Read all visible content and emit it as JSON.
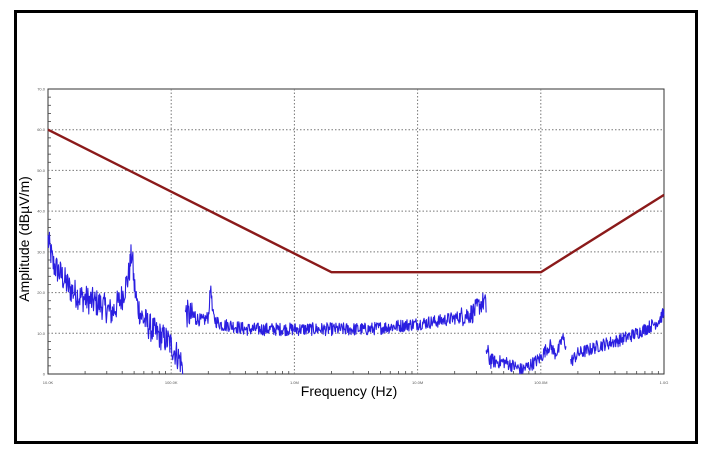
{
  "chart_data": {
    "type": "line",
    "title": "",
    "xlabel": "Frequency (Hz)",
    "ylabel": "Amplitude (dBµV/m)",
    "x_scale": "log",
    "xlim": [
      10000,
      1000000000
    ],
    "ylim": [
      0,
      70
    ],
    "grid": true,
    "grid_style": "dotted",
    "x_ticks": [
      {
        "value": 10000,
        "label": "10.0K"
      },
      {
        "value": 100000,
        "label": "100.0K"
      },
      {
        "value": 1000000,
        "label": "1.0M"
      },
      {
        "value": 10000000,
        "label": "10.0M"
      },
      {
        "value": 100000000,
        "label": "100.0M"
      },
      {
        "value": 1000000000,
        "label": "1.0G"
      }
    ],
    "y_ticks": [
      {
        "value": 0,
        "label": "0"
      },
      {
        "value": 10,
        "label": "10.0"
      },
      {
        "value": 20,
        "label": "20.0"
      },
      {
        "value": 30,
        "label": "30.0"
      },
      {
        "value": 40,
        "label": "40.0"
      },
      {
        "value": 50,
        "label": "50.0"
      },
      {
        "value": 60,
        "label": "60.0"
      },
      {
        "value": 70,
        "label": "70.0"
      }
    ],
    "series": [
      {
        "role": "limit",
        "color": "#8b1a1a",
        "x": [
          10000,
          2000000,
          30000000,
          100000000,
          1000000000
        ],
        "y": [
          60,
          25,
          25,
          25,
          44
        ]
      },
      {
        "role": "measurement",
        "color": "#2a1ee0",
        "segments": [
          {
            "x": [
              10000,
              11000,
              13000,
              15000,
              18000,
              22000,
              27000,
              33000,
              40000,
              45000,
              48000,
              50000,
              53000,
              58000,
              65000,
              75000,
              85000,
              95000,
              100000,
              110000,
              120000,
              125000
            ],
            "y": [
              33,
              27,
              24,
              21,
              19,
              18,
              17,
              15,
              19,
              24,
              30,
              22,
              17,
              14,
              12,
              10,
              9,
              8,
              7,
              5,
              3,
              0
            ]
          },
          {
            "x": [
              130000,
              150000,
              180000,
              200000,
              210000,
              215000,
              220000,
              230000,
              260000,
              300000,
              400000,
              600000,
              1000000,
              2000000,
              4000000,
              8000000,
              15000000,
              22000000,
              28000000,
              32000000,
              35000000,
              36000000
            ],
            "y": [
              15,
              14,
              13,
              14,
              22,
              16,
              14,
              13,
              12,
              12,
              11,
              11,
              11,
              11,
              11,
              12,
              13,
              14,
              15,
              17,
              18,
              16
            ]
          },
          {
            "x": [
              36000000,
              38000000,
              42000000,
              50000000,
              60000000,
              70000000,
              80000000,
              90000000,
              100000000,
              110000000,
              120000000,
              130000000,
              140000000,
              150000000,
              160000000
            ],
            "y": [
              6,
              4,
              3,
              3,
              2,
              1,
              2,
              3,
              4,
              6,
              7,
              5,
              6,
              9,
              7
            ]
          },
          {
            "x": [
              175000000,
              200000000,
              250000000,
              300000000,
              400000000,
              500000000,
              600000000,
              700000000,
              800000000,
              900000000,
              1000000000
            ],
            "y": [
              3,
              5,
              6,
              7,
              8,
              9,
              10,
              11,
              12,
              13,
              15
            ]
          }
        ]
      }
    ]
  }
}
